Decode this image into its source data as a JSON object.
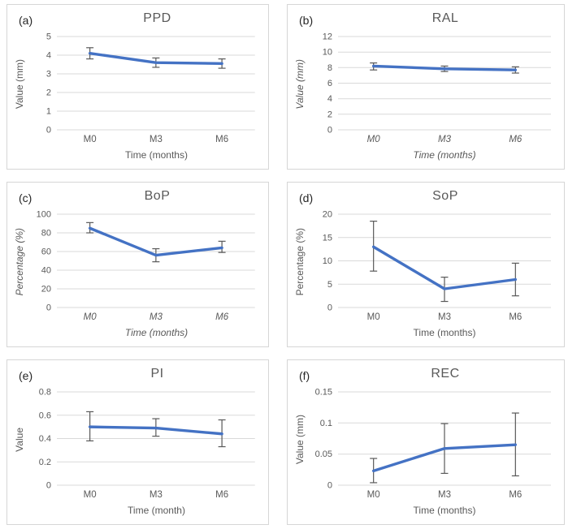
{
  "style": {
    "line_color": "#4472C4",
    "error_bar_color": "#595959",
    "grid_color": "#D9D9D9",
    "tick_label_color": "#595959",
    "title_color": "#595959",
    "panel_label_color": "#262626",
    "panel_border_color": "#D6D6D6",
    "background": "#FFFFFF"
  },
  "chart_data": [
    {
      "type": "line",
      "panel_label": "(a)",
      "title": "PPD",
      "ylabel": "Value (mm)",
      "xlabel": "Time (months)",
      "axis_labels_italic": false,
      "categories": [
        "M0",
        "M3",
        "M6"
      ],
      "values": [
        4.1,
        3.6,
        3.55
      ],
      "error_low": [
        3.8,
        3.35,
        3.3
      ],
      "error_high": [
        4.4,
        3.85,
        3.8
      ],
      "ylim": [
        0,
        5
      ],
      "y_ticks": [
        0,
        1,
        2,
        3,
        4,
        5
      ],
      "grid": true,
      "legend": false
    },
    {
      "type": "line",
      "panel_label": "(b)",
      "title": "RAL",
      "ylabel": "Value (mm)",
      "xlabel": "Time (months)",
      "axis_labels_italic": true,
      "categories": [
        "M0",
        "M3",
        "M6"
      ],
      "values": [
        8.2,
        7.85,
        7.7
      ],
      "error_low": [
        7.7,
        7.5,
        7.3
      ],
      "error_high": [
        8.6,
        8.2,
        8.1
      ],
      "ylim": [
        0,
        12
      ],
      "y_ticks": [
        0,
        2,
        4,
        6,
        8,
        10,
        12
      ],
      "grid": true,
      "legend": false
    },
    {
      "type": "line",
      "panel_label": "(c)",
      "title": "BoP",
      "ylabel": "Percentage (%)",
      "xlabel": "Time (months)",
      "axis_labels_italic": true,
      "categories": [
        "M0",
        "M3",
        "M6"
      ],
      "values": [
        85,
        56,
        64
      ],
      "error_low": [
        80,
        49,
        59
      ],
      "error_high": [
        91,
        63,
        71
      ],
      "ylim": [
        0,
        100
      ],
      "y_ticks": [
        0,
        20,
        40,
        60,
        80,
        100
      ],
      "grid": true,
      "legend": false
    },
    {
      "type": "line",
      "panel_label": "(d)",
      "title": "SoP",
      "ylabel": "Percentage (%)",
      "xlabel": "Time (months)",
      "axis_labels_italic": false,
      "categories": [
        "M0",
        "M3",
        "M6"
      ],
      "values": [
        13,
        4,
        6
      ],
      "error_low": [
        7.8,
        1.3,
        2.5
      ],
      "error_high": [
        18.5,
        6.5,
        9.5
      ],
      "ylim": [
        0,
        20
      ],
      "y_ticks": [
        0,
        5,
        10,
        15,
        20
      ],
      "grid": true,
      "legend": false
    },
    {
      "type": "line",
      "panel_label": "(e)",
      "title": "PI",
      "ylabel": "Value",
      "xlabel": "Time (month)",
      "axis_labels_italic": false,
      "categories": [
        "M0",
        "M3",
        "M6"
      ],
      "values": [
        0.5,
        0.49,
        0.44
      ],
      "error_low": [
        0.38,
        0.42,
        0.33
      ],
      "error_high": [
        0.63,
        0.57,
        0.56
      ],
      "ylim": [
        0,
        0.8
      ],
      "y_ticks": [
        0,
        0.2,
        0.4,
        0.6,
        0.8
      ],
      "grid": true,
      "legend": false
    },
    {
      "type": "line",
      "panel_label": "(f)",
      "title": "REC",
      "ylabel": "Value (mm)",
      "xlabel": "Time (months)",
      "axis_labels_italic": false,
      "categories": [
        "M0",
        "M3",
        "M6"
      ],
      "values": [
        0.023,
        0.059,
        0.065
      ],
      "error_low": [
        0.004,
        0.019,
        0.015
      ],
      "error_high": [
        0.043,
        0.099,
        0.116
      ],
      "ylim": [
        0,
        0.15
      ],
      "y_ticks": [
        0,
        0.05,
        0.1,
        0.15
      ],
      "grid": true,
      "legend": false
    }
  ]
}
